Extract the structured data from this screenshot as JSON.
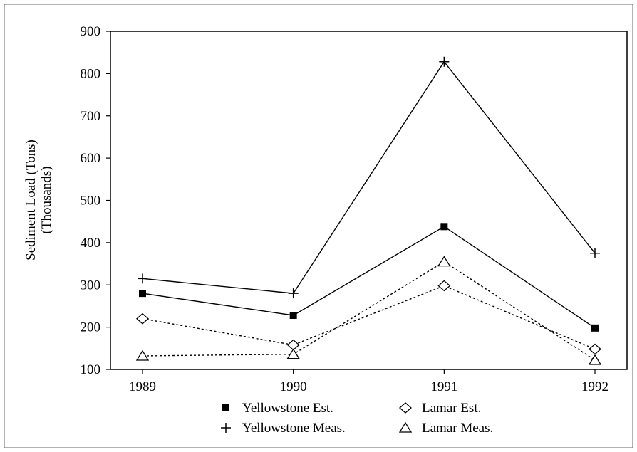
{
  "chart_data": {
    "type": "line",
    "title": "",
    "ylabel_lines": [
      "Sediment Load (Tons)",
      "(Thousands)"
    ],
    "xlabel": "",
    "categories": [
      "1989",
      "1990",
      "1991",
      "1992"
    ],
    "ylim": [
      100,
      900
    ],
    "yticks": [
      100,
      200,
      300,
      400,
      500,
      600,
      700,
      800,
      900
    ],
    "grid": false,
    "legend_position": "bottom",
    "series": [
      {
        "name": "Yellowstone Est.",
        "values": [
          280,
          228,
          438,
          198
        ],
        "marker": "filled-square",
        "line": "solid"
      },
      {
        "name": "Yellowstone Meas.",
        "values": [
          315,
          280,
          828,
          375
        ],
        "marker": "plus",
        "line": "solid"
      },
      {
        "name": "Lamar Est.",
        "values": [
          220,
          158,
          298,
          148
        ],
        "marker": "open-diamond",
        "line": "dotted"
      },
      {
        "name": "Lamar Meas.",
        "values": [
          132,
          136,
          355,
          122
        ],
        "marker": "open-triangle",
        "line": "dotted"
      }
    ]
  }
}
